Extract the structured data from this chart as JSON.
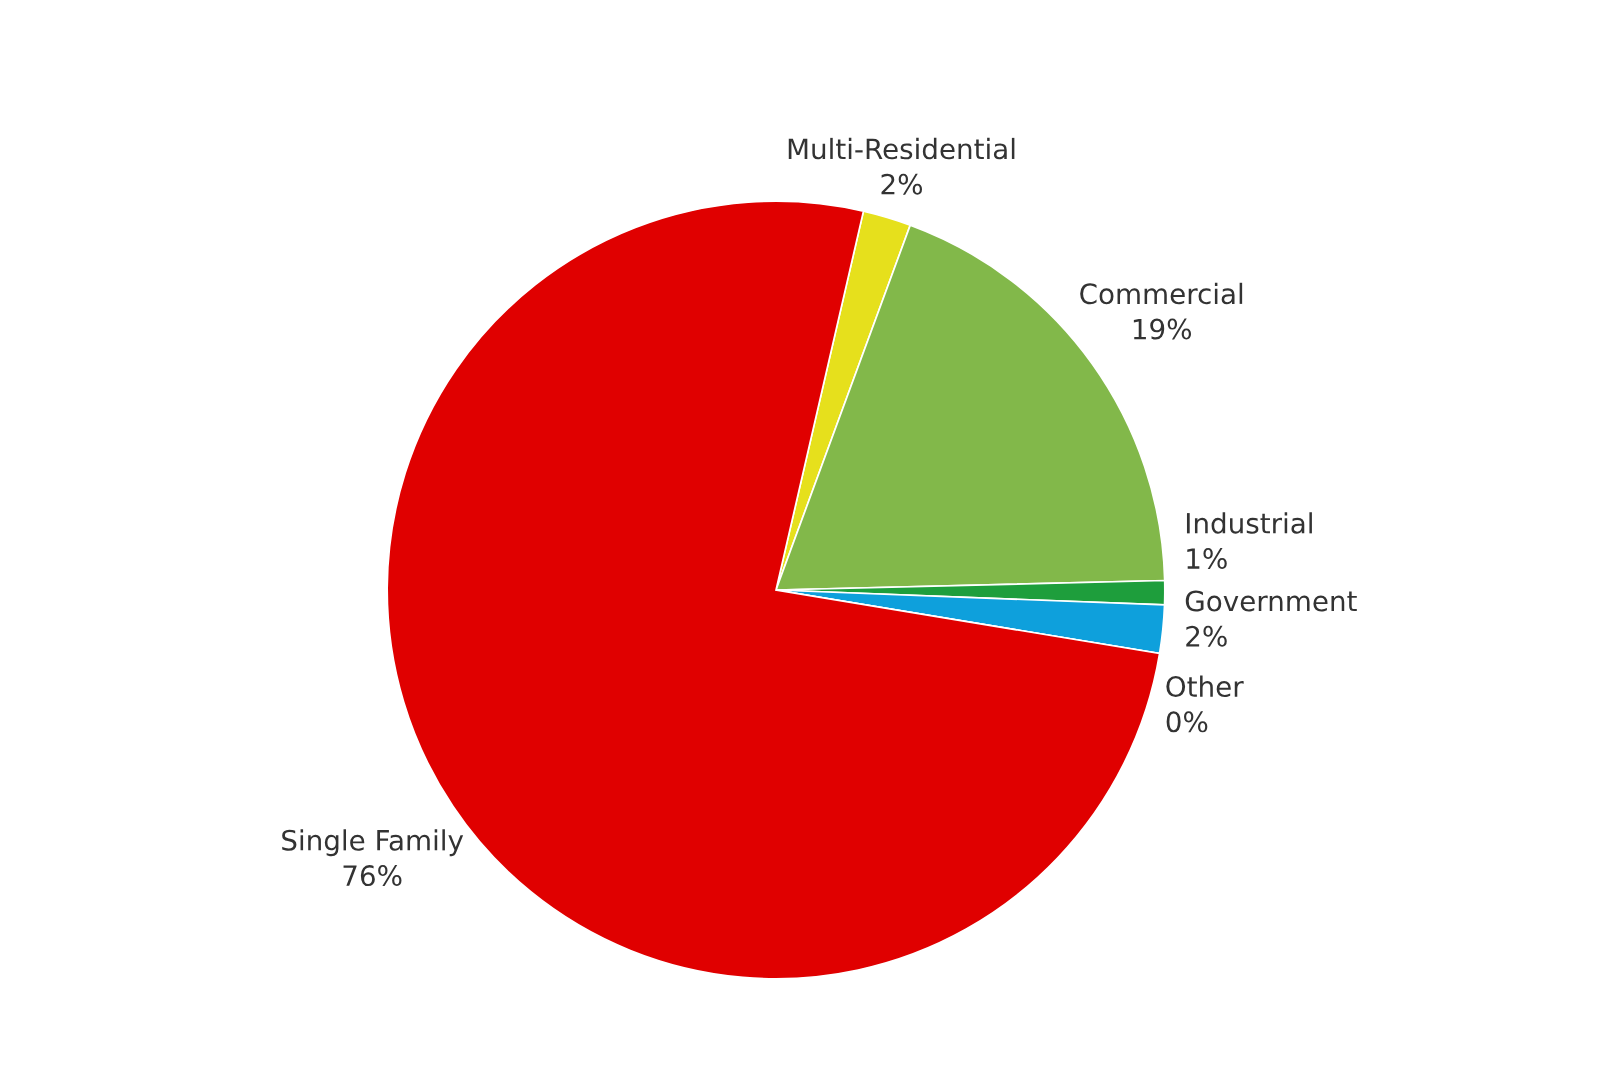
{
  "chart_data": {
    "type": "pie",
    "categories": [
      "Multi-Residential",
      "Commercial",
      "Industrial",
      "Government",
      "Other",
      "Single Family"
    ],
    "values": [
      2,
      19,
      1,
      2,
      0,
      76
    ],
    "value_labels": [
      "2%",
      "19%",
      "1%",
      "2%",
      "0%",
      "76%"
    ],
    "colors": [
      "#e6e01c",
      "#82b84a",
      "#1e9e3c",
      "#0ea0dc",
      "#f0a0a0",
      "#e00000"
    ],
    "legend": false
  }
}
